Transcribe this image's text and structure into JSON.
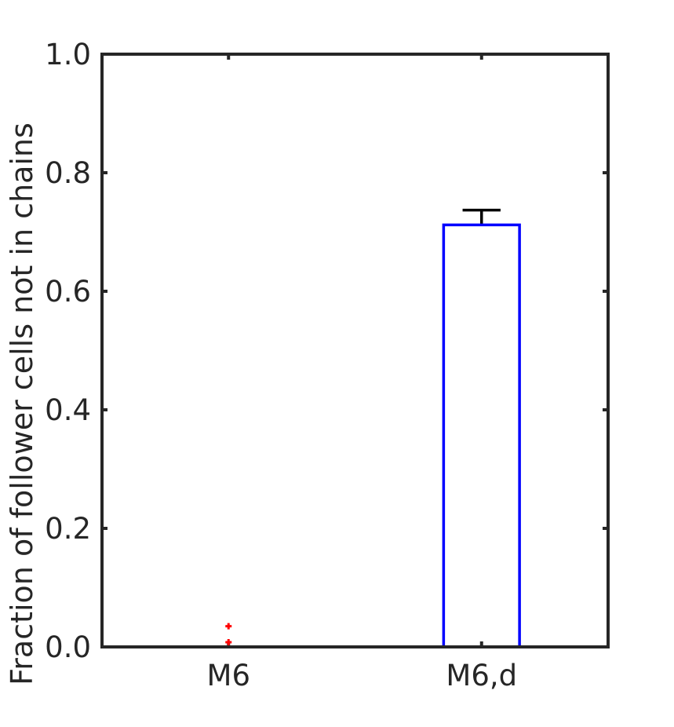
{
  "chart_data": {
    "type": "box",
    "title": "",
    "xlabel": "",
    "ylabel": "Fraction of follower cells not in chains",
    "ylim": [
      0,
      1
    ],
    "yticks": [
      0,
      0.2,
      0.4,
      0.6,
      0.8,
      1.0
    ],
    "ytick_labels": [
      "0.0",
      "0.2",
      "0.4",
      "0.6",
      "0.8",
      "1.0"
    ],
    "grid": false,
    "categories": [
      "M6",
      "M6,d"
    ],
    "boxes": [
      {
        "category": "M6",
        "q1": 0,
        "median": 0,
        "q3": 0,
        "whisker_low": 0,
        "whisker_high": 0,
        "outliers": [
          0.008,
          0.035
        ]
      },
      {
        "category": "M6,d",
        "q1": 0,
        "median": 0,
        "q3": 0.712,
        "whisker_low": 0,
        "whisker_high": 0.737,
        "outliers": []
      }
    ],
    "colors": {
      "box": "#0000ff",
      "median": "#ff0000",
      "whisker": "#000000",
      "outlier": "#ff0000",
      "axis": "#262626"
    }
  }
}
